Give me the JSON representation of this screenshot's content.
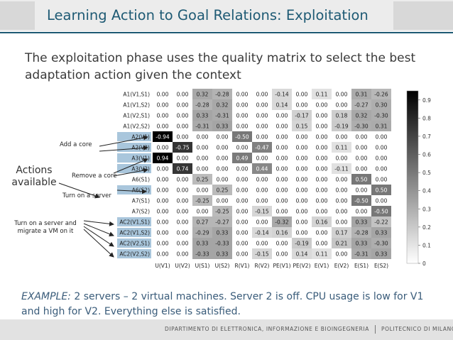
{
  "slide": {
    "title": "Learning Action to Goal Relations: Exploitation",
    "intro": "The exploitation phase uses the quality matrix to select the best adaptation action given the context",
    "example_label": "EXAMPLE:",
    "example_text": " 2 servers – 2 virtual machines. Server 2 is off. CPU usage is low for V1 and high for V2. Everything else is satisfied.",
    "footer_left": "DIPARTIMENTO DI ELETTRONICA, INFORMAZIONE E BIOINGEGNERIA",
    "footer_right": "POLITECNICO DI MILANO"
  },
  "annotations": {
    "actions": "Actions available",
    "add_core": "Add a core",
    "remove_core": "Remove a core",
    "turn_on_server": "Turn on a server",
    "turn_on_migrate": "Turn on a server and migrate a VM on it"
  },
  "chart_data": {
    "type": "heatmap",
    "rows": [
      "A1(V1,S1)",
      "A1(V1,S2)",
      "A1(V2,S1)",
      "A1(V2,S2)",
      "A2(V1)",
      "A2(V2)",
      "A3(V1)",
      "A3(V2)",
      "A6(S1)",
      "A6(S2)",
      "A7(S1)",
      "A7(S2)",
      "AC2(V1,S1)",
      "AC2(V1,S2)",
      "AC2(V2,S1)",
      "AC2(V2,S2)"
    ],
    "columns": [
      "U(V1)",
      "U(V2)",
      "U(S1)",
      "U(S2)",
      "R(V1)",
      "R(V2)",
      "PE(V1)",
      "PE(V2)",
      "E(V1)",
      "E(V2)",
      "E(S1)",
      "E(S2)"
    ],
    "values": [
      [
        0.0,
        0.0,
        0.32,
        -0.28,
        0.0,
        0.0,
        -0.14,
        0.0,
        0.11,
        0.0,
        0.31,
        -0.26
      ],
      [
        0.0,
        0.0,
        -0.28,
        0.32,
        0.0,
        0.0,
        0.14,
        0.0,
        0.0,
        0.0,
        -0.27,
        0.3
      ],
      [
        0.0,
        0.0,
        0.33,
        -0.31,
        0.0,
        0.0,
        0.0,
        -0.17,
        0.0,
        0.18,
        0.32,
        -0.3
      ],
      [
        0.0,
        0.0,
        -0.31,
        0.33,
        0.0,
        0.0,
        0.0,
        0.15,
        0.0,
        -0.19,
        -0.3,
        0.31
      ],
      [
        -0.94,
        0.0,
        0.0,
        0.0,
        -0.5,
        0.0,
        0.0,
        0.0,
        0.0,
        0.0,
        0.0,
        0.0
      ],
      [
        0.0,
        -0.75,
        0.0,
        0.0,
        0.0,
        -0.47,
        0.0,
        0.0,
        0.0,
        0.11,
        0.0,
        0.0
      ],
      [
        0.94,
        0.0,
        0.0,
        0.0,
        0.49,
        0.0,
        0.0,
        0.0,
        0.0,
        0.0,
        0.0,
        0.0
      ],
      [
        0.0,
        0.74,
        0.0,
        0.0,
        0.0,
        0.44,
        0.0,
        0.0,
        0.0,
        -0.11,
        0.0,
        0.0
      ],
      [
        0.0,
        0.0,
        0.25,
        0.0,
        0.0,
        0.0,
        0.0,
        0.0,
        0.0,
        0.0,
        0.5,
        0.0
      ],
      [
        0.0,
        0.0,
        0.0,
        0.25,
        0.0,
        0.0,
        0.0,
        0.0,
        0.0,
        0.0,
        0.0,
        0.5
      ],
      [
        0.0,
        0.0,
        -0.25,
        0.0,
        0.0,
        0.0,
        0.0,
        0.0,
        0.0,
        0.0,
        -0.5,
        0.0
      ],
      [
        0.0,
        0.0,
        0.0,
        -0.25,
        0.0,
        -0.15,
        0.0,
        0.0,
        0.0,
        0.0,
        0.0,
        -0.5
      ],
      [
        0.0,
        0.0,
        0.27,
        -0.27,
        0.0,
        0.0,
        -0.32,
        0.0,
        0.16,
        0.0,
        0.33,
        -0.22
      ],
      [
        0.0,
        0.0,
        -0.29,
        0.33,
        0.0,
        -0.14,
        0.16,
        0.0,
        0.0,
        0.17,
        -0.28,
        0.33
      ],
      [
        0.0,
        0.0,
        0.33,
        -0.33,
        0.0,
        0.0,
        0.0,
        -0.19,
        0.0,
        0.21,
        0.33,
        -0.3
      ],
      [
        0.0,
        0.0,
        -0.33,
        0.33,
        0.0,
        -0.15,
        0.0,
        0.14,
        0.11,
        0.0,
        -0.31,
        0.33
      ]
    ],
    "highlighted_rows": [
      "A2(V1)",
      "A2(V2)",
      "A3(V1)",
      "A3(V2)",
      "A6(S2)",
      "AC2(V1,S1)",
      "AC2(V1,S2)",
      "AC2(V2,S1)",
      "AC2(V2,S2)"
    ],
    "highlight_color": "#a9c6dc",
    "colorbar": {
      "min": 0,
      "max": 0.9,
      "ticks": [
        "0.9",
        "0.8",
        "0.7",
        "0.6",
        "0.5",
        "0.4",
        "0.3",
        "0.2",
        "0.1",
        "0"
      ]
    },
    "color_scale": "greyscale by absolute value (white = 0, black = max)"
  }
}
